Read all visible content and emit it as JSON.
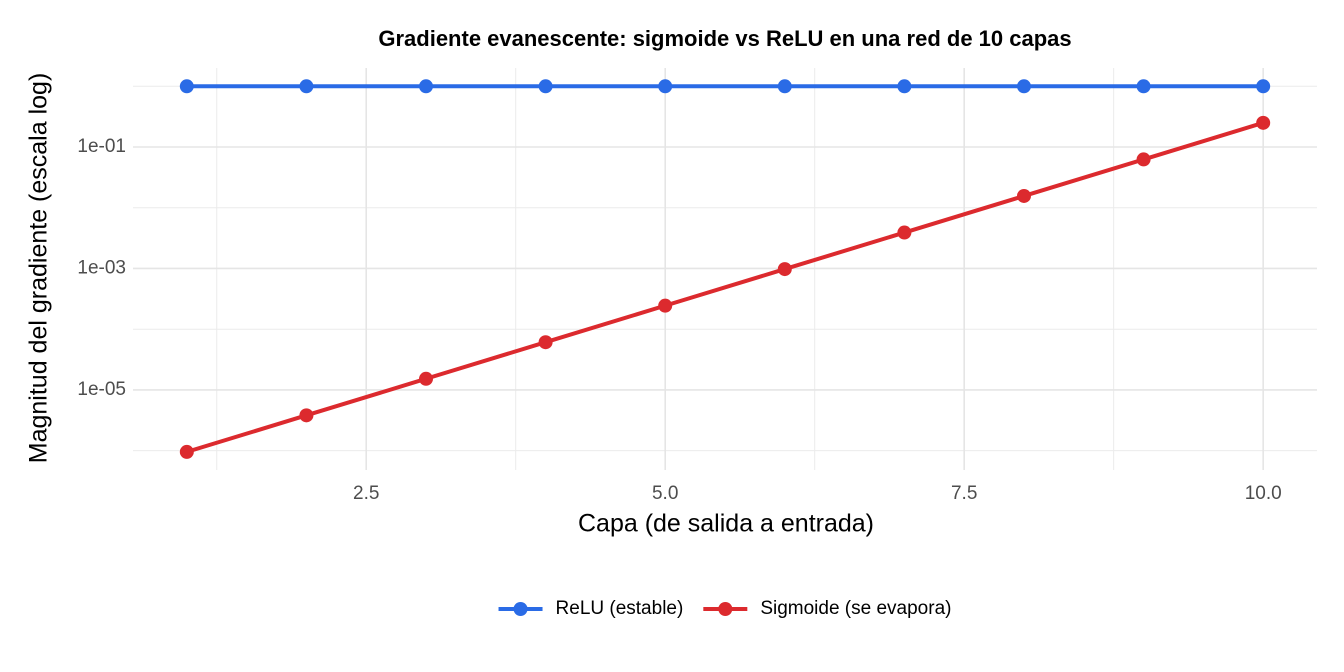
{
  "chart_data": {
    "type": "line",
    "title": "Gradiente evanescente: sigmoide vs ReLU en una red de 10 capas",
    "x_label": "Capa (de salida a entrada)",
    "y_label": "Magnitud del gradiente (escala log)",
    "x": [
      1,
      2,
      3,
      4,
      5,
      6,
      7,
      8,
      9,
      10
    ],
    "series": [
      {
        "name": "ReLU (estable)",
        "color": "#2a6be6",
        "values": [
          1,
          1,
          1,
          1,
          1,
          1,
          1,
          1,
          1,
          1
        ]
      },
      {
        "name": "Sigmoide (se evapora)",
        "color": "#dc2a2e",
        "values": [
          9.5367e-07,
          3.8147e-06,
          1.5259e-05,
          6.1035e-05,
          0.00024414,
          0.00097656,
          0.00390625,
          0.015625,
          0.0625,
          0.25
        ]
      }
    ],
    "xlim": [
      0.55,
      10.45
    ],
    "xticks": [
      2.5,
      {
        "value": 5,
        "label": "5.0"
      },
      7.5,
      {
        "value": 10,
        "label": "10.0"
      }
    ],
    "xticks_minor": [
      1.25,
      3.75,
      6.25,
      8.75
    ],
    "ylim": [
      4.8e-07,
      2.0
    ],
    "log_y": true,
    "yticks": [
      {
        "value": 1e-05,
        "label": "1e-05"
      },
      {
        "value": 0.001,
        "label": "1e-03"
      },
      {
        "value": 0.1,
        "label": "1e-01"
      }
    ],
    "yticks_minor": [
      1e-06,
      0.0001,
      0.01,
      1
    ],
    "grid": true,
    "legend": "bottom"
  }
}
